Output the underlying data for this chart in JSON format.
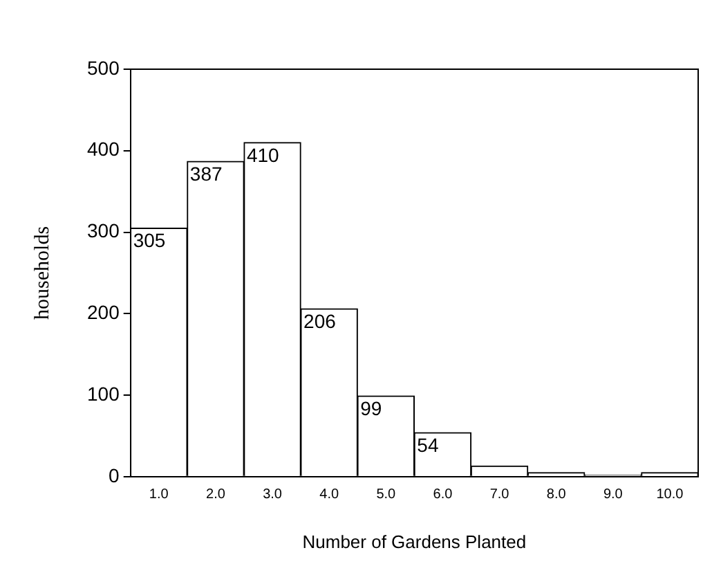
{
  "chart_data": {
    "type": "bar",
    "xlabel": "Number of Gardens Planted",
    "ylabel": "households",
    "categories": [
      "1.0",
      "2.0",
      "3.0",
      "4.0",
      "5.0",
      "6.0",
      "7.0",
      "8.0",
      "9.0",
      "10.0"
    ],
    "values": [
      305,
      387,
      410,
      206,
      99,
      54,
      13,
      5,
      2,
      5
    ],
    "value_labels": [
      "305",
      "387",
      "410",
      "206",
      "99",
      "54",
      null,
      null,
      null,
      null
    ],
    "color": "#ffffff",
    "ylim": [
      0,
      500
    ],
    "yticks": [
      0,
      100,
      200,
      300,
      400,
      500
    ],
    "grid": false,
    "legend": false
  }
}
